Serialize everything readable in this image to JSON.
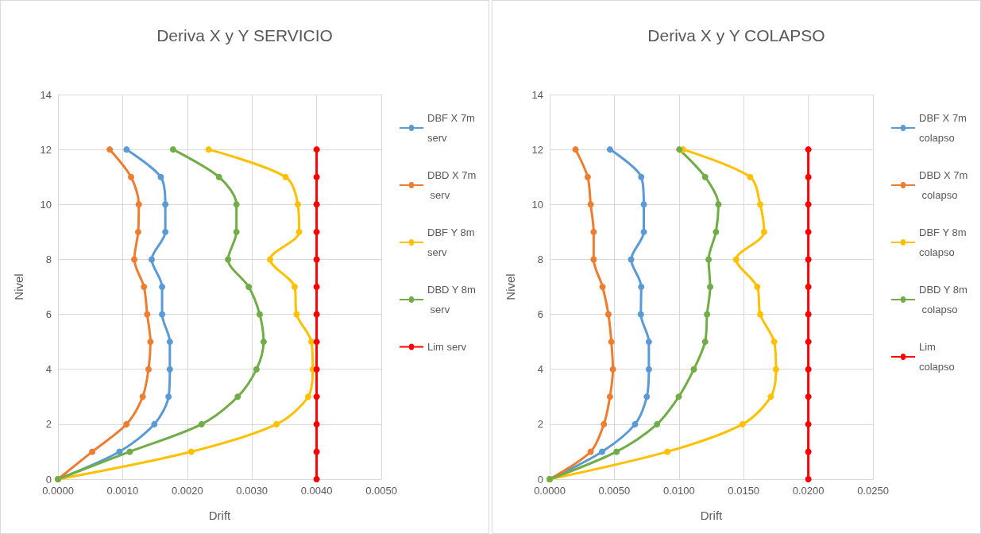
{
  "chart_data": [
    {
      "type": "line",
      "title": "Deriva X y Y SERVICIO",
      "xlabel": "Drift",
      "ylabel": "Nivel",
      "xlim": [
        0,
        0.005
      ],
      "xticks": [
        {
          "value": 0,
          "label": "0.0000"
        },
        {
          "value": 0.001,
          "label": "0.0010"
        },
        {
          "value": 0.002,
          "label": "0.0020"
        },
        {
          "value": 0.003,
          "label": "0.0030"
        },
        {
          "value": 0.004,
          "label": "0.0040"
        },
        {
          "value": 0.005,
          "label": "0.0050"
        }
      ],
      "ylim": [
        0,
        14
      ],
      "yticks": [
        0,
        2,
        4,
        6,
        8,
        10,
        12,
        14
      ],
      "grid": true,
      "legend": "right",
      "marker": "circle",
      "line_style": "solid",
      "series": [
        {
          "name": "DBF X 7m serv",
          "color": "#5b9bd5",
          "x": [
            0,
            0.00095,
            0.00149,
            0.00171,
            0.00173,
            0.00173,
            0.00161,
            0.00161,
            0.00145,
            0.00166,
            0.00166,
            0.00159,
            0.00106
          ],
          "values": [
            0,
            1,
            2,
            3,
            4,
            5,
            6,
            7,
            8,
            9,
            10,
            11,
            12
          ]
        },
        {
          "name": "DBD X 7m serv",
          "color": "#ed7d31",
          "x": [
            0,
            0.00053,
            0.00106,
            0.00131,
            0.0014,
            0.00143,
            0.00138,
            0.00133,
            0.00118,
            0.00124,
            0.00125,
            0.00113,
            0.0008
          ],
          "values": [
            0,
            1,
            2,
            3,
            4,
            5,
            6,
            7,
            8,
            9,
            10,
            11,
            12
          ]
        },
        {
          "name": "DBF Y 8m serv",
          "color": "#ffc000",
          "x": [
            0,
            0.00206,
            0.00338,
            0.00387,
            0.00394,
            0.00392,
            0.00369,
            0.00366,
            0.00328,
            0.00373,
            0.00371,
            0.00352,
            0.00233
          ],
          "values": [
            0,
            1,
            2,
            3,
            4,
            5,
            6,
            7,
            8,
            9,
            10,
            11,
            12
          ]
        },
        {
          "name": "DBD Y 8m serv",
          "color": "#70ad47",
          "x": [
            0,
            0.00111,
            0.00222,
            0.00278,
            0.00307,
            0.00318,
            0.00312,
            0.00295,
            0.00263,
            0.00276,
            0.00276,
            0.00249,
            0.00178
          ],
          "values": [
            0,
            1,
            2,
            3,
            4,
            5,
            6,
            7,
            8,
            9,
            10,
            11,
            12
          ]
        },
        {
          "name": "Lim serv",
          "color": "#ff0000",
          "x": [
            0.004,
            0.004,
            0.004,
            0.004,
            0.004,
            0.004,
            0.004,
            0.004,
            0.004,
            0.004,
            0.004,
            0.004,
            0.004
          ],
          "values": [
            0,
            1,
            2,
            3,
            4,
            5,
            6,
            7,
            8,
            9,
            10,
            11,
            12
          ]
        }
      ]
    },
    {
      "type": "line",
      "title": "Deriva X y Y COLAPSO",
      "xlabel": "Drift",
      "ylabel": "Nivel",
      "xlim": [
        0,
        0.025
      ],
      "xticks": [
        {
          "value": 0,
          "label": "0.0000"
        },
        {
          "value": 0.005,
          "label": "0.0050"
        },
        {
          "value": 0.01,
          "label": "0.0100"
        },
        {
          "value": 0.015,
          "label": "0.0150"
        },
        {
          "value": 0.02,
          "label": "0.0200"
        },
        {
          "value": 0.025,
          "label": "0.0250"
        }
      ],
      "ylim": [
        0,
        14
      ],
      "yticks": [
        0,
        2,
        4,
        6,
        8,
        10,
        12,
        14
      ],
      "grid": true,
      "legend": "right",
      "marker": "circle",
      "line_style": "solid",
      "series": [
        {
          "name": "DBF X 7m colapso",
          "color": "#5b9bd5",
          "x": [
            0,
            0.00405,
            0.0066,
            0.00751,
            0.00767,
            0.00767,
            0.00705,
            0.00708,
            0.0063,
            0.00728,
            0.00728,
            0.00708,
            0.00466
          ],
          "values": [
            0,
            1,
            2,
            3,
            4,
            5,
            6,
            7,
            8,
            9,
            10,
            11,
            12
          ]
        },
        {
          "name": "DBD X 7m colapso",
          "color": "#ed7d31",
          "x": [
            0,
            0.00317,
            0.00419,
            0.00466,
            0.00489,
            0.00477,
            0.00454,
            0.00409,
            0.0034,
            0.0034,
            0.00317,
            0.00294,
            0.002
          ],
          "values": [
            0,
            1,
            2,
            3,
            4,
            5,
            6,
            7,
            8,
            9,
            10,
            11,
            12
          ]
        },
        {
          "name": "DBF Y 8m colapso",
          "color": "#ffc000",
          "x": [
            0,
            0.0091,
            0.01491,
            0.0171,
            0.0175,
            0.01736,
            0.01628,
            0.01605,
            0.01442,
            0.01658,
            0.01628,
            0.0155,
            0.01031
          ],
          "values": [
            0,
            1,
            2,
            3,
            4,
            5,
            6,
            7,
            8,
            9,
            10,
            11,
            12
          ]
        },
        {
          "name": "DBD Y 8m colapso",
          "color": "#70ad47",
          "x": [
            0,
            0.00517,
            0.0083,
            0.00998,
            0.01115,
            0.01202,
            0.01217,
            0.01241,
            0.01229,
            0.01286,
            0.01305,
            0.01202,
            0.01002
          ],
          "values": [
            0,
            1,
            2,
            3,
            4,
            5,
            6,
            7,
            8,
            9,
            10,
            11,
            12
          ]
        },
        {
          "name": "Lim colapso",
          "color": "#ff0000",
          "x": [
            0.02,
            0.02,
            0.02,
            0.02,
            0.02,
            0.02,
            0.02,
            0.02,
            0.02,
            0.02,
            0.02,
            0.02,
            0.02
          ],
          "values": [
            0,
            1,
            2,
            3,
            4,
            5,
            6,
            7,
            8,
            9,
            10,
            11,
            12
          ]
        }
      ]
    }
  ]
}
